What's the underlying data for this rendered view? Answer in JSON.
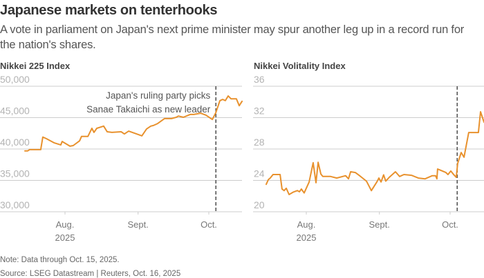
{
  "header": {
    "title": "Japanese markets on tenterhooks",
    "subtitle_line1": "A vote in parliament on Japan's next prime minister may spur another leg up in a record run for",
    "subtitle_line2": "the nation's shares."
  },
  "footer": {
    "note": "Note: Data through Oct. 15, 2025.",
    "source": "Source: LSEG Datastream | Reuters, Oct. 16, 2025"
  },
  "colors": {
    "line": "#e8912d",
    "grid": "#cccccc",
    "tick_text": "#b3b3b3",
    "event_line": "#555555"
  },
  "chart_data": [
    {
      "type": "line",
      "title": "Nikkei 225 Index",
      "xlabel": "",
      "ylabel": "",
      "x_unit": "days since Jul. 1, 2025",
      "ylim": [
        30000,
        50000
      ],
      "yticks": [
        30000,
        35000,
        40000,
        45000,
        50000
      ],
      "ytick_labels": [
        "30,000",
        "35,000",
        "40,000",
        "45,000",
        "50,000"
      ],
      "xticks": [
        31,
        62,
        92
      ],
      "xtick_labels": [
        [
          "Aug.",
          "2025"
        ],
        [
          "Sept."
        ],
        [
          "Oct."
        ]
      ],
      "grid": true,
      "annotation": {
        "x": 95,
        "lines": [
          "Japan's ruling party picks",
          "Sanae Takaichi as new leader"
        ]
      },
      "series": [
        {
          "name": "Nikkei 225 Index",
          "x": [
            14,
            15.2,
            16,
            20.7,
            21.6,
            23.1,
            26.3,
            29.2,
            29.8,
            33.1,
            34.5,
            37.2,
            38,
            40.7,
            42.4,
            43.3,
            44.5,
            47.4,
            48.9,
            50.9,
            54.8,
            56.2,
            58,
            62.1,
            63.6,
            65.6,
            67.4,
            68.5,
            70.3,
            73.2,
            76.2,
            78.2,
            79.1,
            81.2,
            84.1,
            85.6,
            88.5,
            90.8,
            93.5,
            95,
            96.7,
            97.9,
            99,
            100.2,
            101.4,
            103.7,
            104.9,
            106.1
          ],
          "values": [
            39700,
            39700,
            39900,
            39900,
            41900,
            41650,
            41000,
            40650,
            41200,
            40450,
            40550,
            41300,
            42000,
            42000,
            43300,
            42650,
            43300,
            43650,
            42750,
            42650,
            42750,
            42400,
            42850,
            42300,
            42100,
            43200,
            43650,
            43750,
            44050,
            44850,
            44850,
            45050,
            45250,
            45050,
            45500,
            45500,
            45700,
            45400,
            44700,
            45800,
            47700,
            47900,
            47700,
            48450,
            48000,
            48000,
            46900,
            47600
          ]
        }
      ]
    },
    {
      "type": "line",
      "title": "Nikkei Volitality Index",
      "xlabel": "",
      "ylabel": "",
      "x_unit": "days since Jul. 1, 2025",
      "ylim": [
        20,
        36
      ],
      "yticks": [
        20,
        24,
        28,
        32,
        36
      ],
      "ytick_labels": [
        "20",
        "24",
        "28",
        "32",
        "36"
      ],
      "xticks": [
        31,
        62,
        92
      ],
      "xtick_labels": [
        [
          "Aug.",
          "2025"
        ],
        [
          "Sept."
        ],
        [
          "Oct."
        ]
      ],
      "grid": true,
      "annotation": {
        "x": 95
      },
      "series": [
        {
          "name": "Nikkei Volatility Index",
          "x": [
            14,
            14.9,
            15.7,
            16.9,
            19.9,
            20.7,
            21.6,
            22.5,
            23.7,
            25.4,
            27.2,
            28.1,
            28.9,
            30.1,
            32.2,
            33.9,
            35.1,
            36,
            37.2,
            38,
            41.3,
            43.9,
            47.7,
            48.9,
            49.8,
            51.8,
            53.6,
            56.5,
            58.6,
            60.9,
            61.8,
            62.7,
            63.8,
            64.7,
            66.2,
            68.8,
            70.6,
            72.4,
            75.6,
            78.5,
            81.4,
            84.4,
            85.8,
            86.4,
            86.7,
            90.2,
            91.1,
            92.3,
            93.5,
            94.6,
            95.2,
            96.7,
            97.9,
            99.9,
            104,
            104.9,
            106.4
          ],
          "values": [
            23.5,
            24.1,
            24.3,
            24.75,
            24.75,
            22.9,
            22.7,
            23,
            22.2,
            22.5,
            22.7,
            22.55,
            22.9,
            22.4,
            23.8,
            26.25,
            23.7,
            26.3,
            24.8,
            24.5,
            24.5,
            24.3,
            24.6,
            24.2,
            25.1,
            25,
            24.6,
            23.9,
            22.7,
            23.8,
            24.3,
            23.8,
            24.7,
            23.9,
            24.4,
            25.1,
            24.5,
            24.75,
            24.65,
            24.3,
            24.2,
            24.6,
            24.6,
            24.2,
            25.45,
            25,
            24.75,
            25.2,
            24.75,
            24.4,
            26.15,
            27.55,
            26.95,
            30.1,
            30.1,
            32.75,
            31.4
          ]
        }
      ]
    }
  ]
}
